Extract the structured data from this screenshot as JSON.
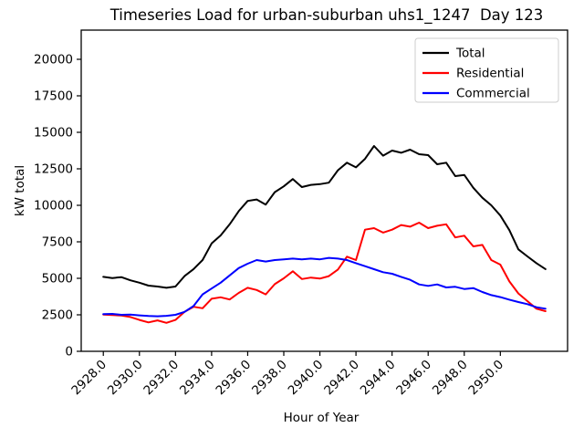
{
  "figure": {
    "background": "#ffffff",
    "title": "Timeseries Load for urban-suburban uhs1_1247  Day 123"
  },
  "chart_data": {
    "type": "line",
    "title": "Timeseries Load for urban-suburban uhs1_1247  Day 123",
    "xlabel": "Hour of Year",
    "ylabel": "kW total",
    "xlim": [
      2926.775,
      2953.725
    ],
    "ylim": [
      0,
      22000
    ],
    "grid": false,
    "legend_position": "upper right",
    "x_ticks": {
      "values": [
        2928,
        2930,
        2932,
        2934,
        2936,
        2938,
        2940,
        2942,
        2944,
        2946,
        2948,
        2950
      ],
      "labels": [
        "2928.0",
        "2930.0",
        "2932.0",
        "2934.0",
        "2936.0",
        "2938.0",
        "2940.0",
        "2942.0",
        "2944.0",
        "2946.0",
        "2948.0",
        "2950.0"
      ],
      "rotation": 45
    },
    "y_ticks": {
      "values": [
        0,
        2500,
        5000,
        7500,
        10000,
        12500,
        15000,
        17500,
        20000
      ],
      "labels": [
        "0",
        "2500",
        "5000",
        "7500",
        "10000",
        "12500",
        "15000",
        "17500",
        "20000"
      ]
    },
    "x": [
      2928.0,
      2928.5,
      2929.0,
      2929.5,
      2930.0,
      2930.5,
      2931.0,
      2931.5,
      2932.0,
      2932.5,
      2933.0,
      2933.5,
      2934.0,
      2934.5,
      2935.0,
      2935.5,
      2936.0,
      2936.5,
      2937.0,
      2937.5,
      2938.0,
      2938.5,
      2939.0,
      2939.5,
      2940.0,
      2940.5,
      2941.0,
      2941.5,
      2942.0,
      2942.5,
      2943.0,
      2943.5,
      2944.0,
      2944.5,
      2945.0,
      2945.5,
      2946.0,
      2946.5,
      2947.0,
      2947.5,
      2948.0,
      2948.5,
      2949.0,
      2949.5,
      2950.0,
      2950.5,
      2951.0,
      2951.5,
      2952.0,
      2952.5
    ],
    "series": [
      {
        "name": "Total",
        "color": "#000000",
        "values": [
          5100,
          5020,
          5080,
          4860,
          4700,
          4500,
          4440,
          4350,
          4440,
          5150,
          5630,
          6250,
          7390,
          7940,
          8700,
          9600,
          10300,
          10400,
          10050,
          10900,
          11300,
          11800,
          11250,
          11400,
          11450,
          11550,
          12400,
          12920,
          12600,
          13180,
          14060,
          13400,
          13750,
          13600,
          13810,
          13500,
          13440,
          12810,
          12920,
          12000,
          12080,
          11200,
          10520,
          10000,
          9300,
          8300,
          6980,
          6500,
          6040,
          5630
        ]
      },
      {
        "name": "Residential",
        "color": "#ff0000",
        "values": [
          2520,
          2480,
          2450,
          2350,
          2150,
          1980,
          2120,
          1950,
          2150,
          2700,
          3050,
          2950,
          3600,
          3700,
          3550,
          4000,
          4350,
          4200,
          3900,
          4600,
          5000,
          5480,
          4950,
          5050,
          4980,
          5150,
          5600,
          6480,
          6250,
          8330,
          8440,
          8130,
          8330,
          8650,
          8540,
          8810,
          8440,
          8600,
          8700,
          7800,
          7920,
          7190,
          7290,
          6250,
          5940,
          4790,
          3960,
          3440,
          2920,
          2750
        ]
      },
      {
        "name": "Commercial",
        "color": "#0000ff",
        "values": [
          2550,
          2560,
          2500,
          2520,
          2460,
          2420,
          2400,
          2430,
          2500,
          2700,
          3100,
          3900,
          4300,
          4700,
          5200,
          5700,
          6000,
          6250,
          6150,
          6250,
          6300,
          6350,
          6300,
          6350,
          6300,
          6400,
          6350,
          6250,
          6040,
          5830,
          5625,
          5420,
          5310,
          5100,
          4900,
          4580,
          4480,
          4580,
          4375,
          4420,
          4270,
          4330,
          4060,
          3850,
          3710,
          3540,
          3375,
          3230,
          3020,
          2920
        ]
      }
    ]
  },
  "legend": {
    "items": [
      {
        "label": "Total",
        "color": "#000000"
      },
      {
        "label": "Residential",
        "color": "#ff0000"
      },
      {
        "label": "Commercial",
        "color": "#0000ff"
      }
    ]
  }
}
